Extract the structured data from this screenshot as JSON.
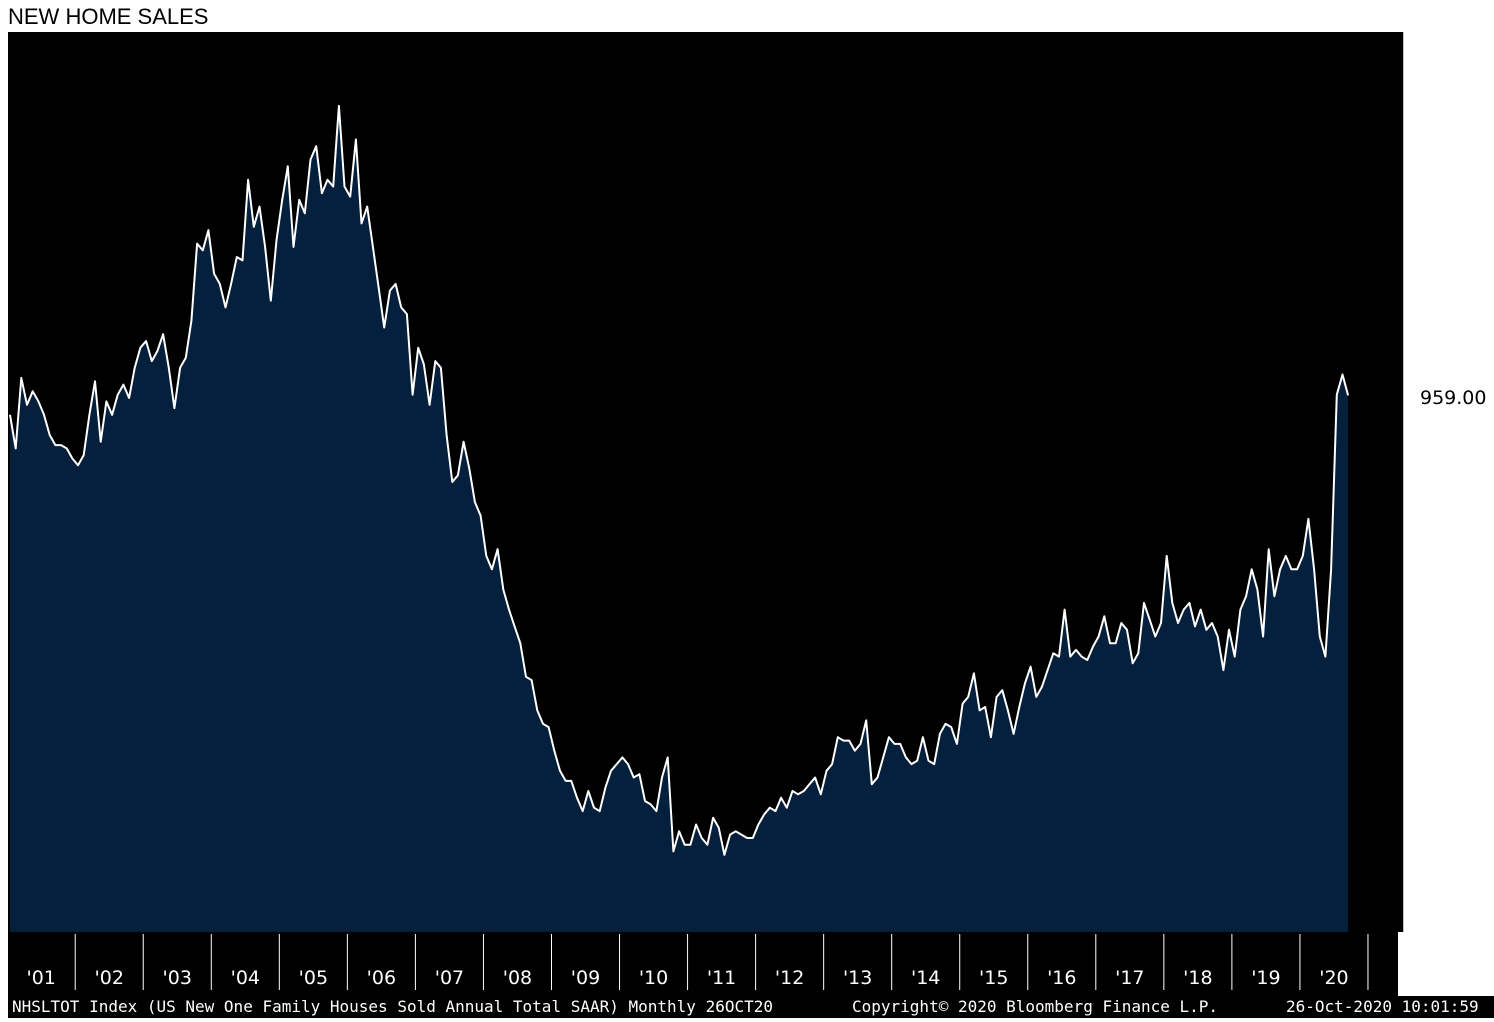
{
  "title": "NEW HOME SALES",
  "footer": {
    "left": "NHSLTOT Index (US New One Family Houses Sold Annual Total SAAR)  Monthly 26OCT20",
    "middle": "Copyright© 2020 Bloomberg Finance L.P.",
    "right": "26-Oct-2020 10:01:59"
  },
  "last_value_label": "959.00",
  "colors": {
    "background": "#000000",
    "area_fill": "#05203d",
    "line": "#ffffff",
    "text": "#ffffff"
  },
  "chart_data": {
    "type": "area",
    "title": "NEW HOME SALES",
    "series": [
      {
        "name": "",
        "unit": "thousands SAAR"
      }
    ],
    "x_tick_labels": [
      "'01",
      "'02",
      "'03",
      "'04",
      "'05",
      "'06",
      "'07",
      "'08",
      "'09",
      "'10",
      "'11",
      "'12",
      "'13",
      "'14",
      "'15",
      "'16",
      "'17",
      "'18",
      "'19",
      "'20"
    ],
    "y_ticks": [
      200,
      400,
      600,
      800,
      1000,
      1200,
      1400
    ],
    "ylim": [
      160,
      1500
    ],
    "x_start": "2001-01",
    "x_end": "2020-09",
    "grid": false,
    "values": [
      930,
      880,
      985,
      945,
      965,
      950,
      930,
      900,
      885,
      885,
      880,
      865,
      855,
      870,
      930,
      980,
      890,
      950,
      930,
      960,
      975,
      955,
      1000,
      1030,
      1040,
      1010,
      1025,
      1050,
      1000,
      940,
      1000,
      1015,
      1070,
      1185,
      1175,
      1205,
      1140,
      1125,
      1090,
      1125,
      1165,
      1160,
      1280,
      1210,
      1240,
      1180,
      1100,
      1190,
      1250,
      1300,
      1180,
      1250,
      1230,
      1310,
      1330,
      1260,
      1280,
      1270,
      1390,
      1270,
      1255,
      1340,
      1215,
      1240,
      1180,
      1120,
      1060,
      1115,
      1125,
      1090,
      1080,
      960,
      1030,
      1005,
      945,
      1010,
      1000,
      900,
      830,
      840,
      890,
      850,
      800,
      780,
      720,
      700,
      730,
      670,
      640,
      615,
      590,
      540,
      535,
      490,
      470,
      465,
      430,
      400,
      385,
      385,
      360,
      340,
      370,
      345,
      340,
      375,
      400,
      410,
      420,
      410,
      390,
      395,
      355,
      350,
      340,
      390,
      420,
      280,
      310,
      290,
      290,
      320,
      300,
      290,
      330,
      315,
      275,
      305,
      310,
      305,
      300,
      300,
      320,
      335,
      345,
      340,
      360,
      345,
      370,
      365,
      370,
      380,
      390,
      365,
      400,
      410,
      450,
      445,
      445,
      430,
      440,
      475,
      380,
      390,
      420,
      450,
      440,
      440,
      420,
      410,
      415,
      450,
      415,
      410,
      455,
      470,
      465,
      440,
      500,
      510,
      545,
      490,
      495,
      450,
      510,
      520,
      490,
      455,
      495,
      530,
      555,
      510,
      525,
      550,
      575,
      570,
      640,
      570,
      580,
      570,
      565,
      585,
      600,
      630,
      590,
      590,
      620,
      610,
      560,
      575,
      650,
      625,
      600,
      620,
      720,
      650,
      620,
      640,
      650,
      615,
      640,
      610,
      620,
      600,
      550,
      610,
      570,
      640,
      660,
      700,
      670,
      600,
      730,
      660,
      700,
      720,
      700,
      700,
      720,
      775,
      700,
      600,
      570,
      700,
      960,
      990,
      959
    ]
  }
}
